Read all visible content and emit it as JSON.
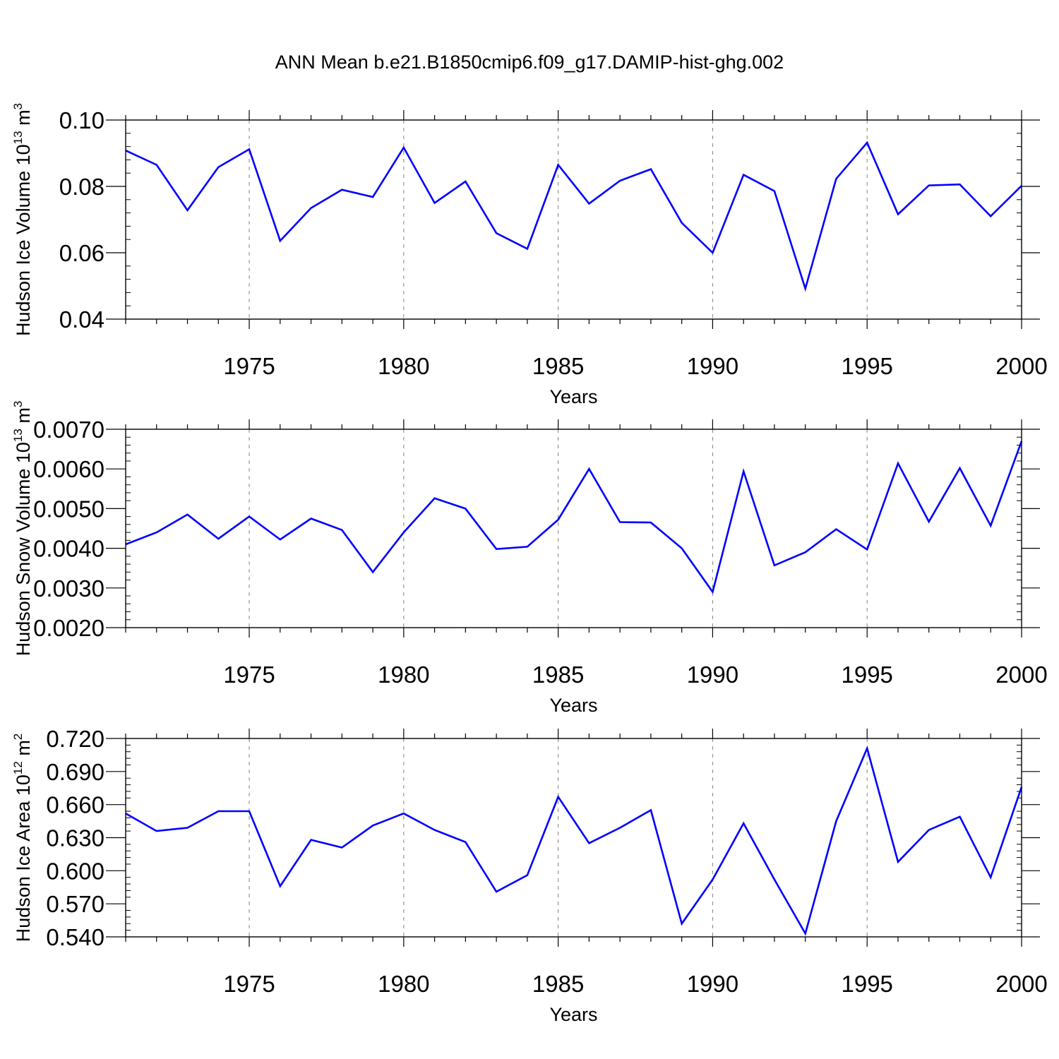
{
  "title": "ANN Mean b.e21.B1850cmip6.f09_g17.DAMIP-hist-ghg.002",
  "colors": {
    "line": "#0000ff",
    "axes": "#000000",
    "grid": "#808080"
  },
  "chart_data": [
    {
      "type": "line",
      "ylabel": "Hudson Ice Volume 10",
      "ylabel_exponent": "13",
      "ylabel_unit": " m",
      "ylabel_unit_exponent": "3",
      "xlabel": "Years",
      "xlim": [
        1971,
        2000
      ],
      "ylim": [
        0.04,
        0.1
      ],
      "x_ticks": [
        1975,
        1980,
        1985,
        1990,
        1995,
        2000
      ],
      "y_ticks": [
        "0.04",
        "0.06",
        "0.08",
        "0.10"
      ],
      "grid": "vertical dashed lines at major x ticks",
      "x": [
        1971,
        1972,
        1973,
        1974,
        1975,
        1976,
        1977,
        1978,
        1979,
        1980,
        1981,
        1982,
        1983,
        1984,
        1985,
        1986,
        1987,
        1988,
        1989,
        1990,
        1991,
        1992,
        1993,
        1994,
        1995,
        1996,
        1997,
        1998,
        1999,
        2000
      ],
      "series": [
        {
          "values": [
            0.0908,
            0.0865,
            0.0728,
            0.0858,
            0.0912,
            0.0636,
            0.0735,
            0.079,
            0.0768,
            0.0917,
            0.075,
            0.0815,
            0.0659,
            0.0612,
            0.0865,
            0.0748,
            0.0817,
            0.0852,
            0.069,
            0.06,
            0.0835,
            0.0786,
            0.0492,
            0.0823,
            0.0932,
            0.0716,
            0.0803,
            0.0806,
            0.071,
            0.0802
          ]
        }
      ]
    },
    {
      "type": "line",
      "ylabel": "Hudson Snow Volume 10",
      "ylabel_exponent": "13",
      "ylabel_unit": " m",
      "ylabel_unit_exponent": "3",
      "xlabel": "Years",
      "xlim": [
        1971,
        2000
      ],
      "ylim": [
        0.002,
        0.007
      ],
      "x_ticks": [
        1975,
        1980,
        1985,
        1990,
        1995,
        2000
      ],
      "y_ticks": [
        "0.0020",
        "0.0030",
        "0.0040",
        "0.0050",
        "0.0060",
        "0.0070"
      ],
      "grid": "vertical dashed lines at major x ticks",
      "x": [
        1971,
        1972,
        1973,
        1974,
        1975,
        1976,
        1977,
        1978,
        1979,
        1980,
        1981,
        1982,
        1983,
        1984,
        1985,
        1986,
        1987,
        1988,
        1989,
        1990,
        1991,
        1992,
        1993,
        1994,
        1995,
        1996,
        1997,
        1998,
        1999,
        2000
      ],
      "series": [
        {
          "values": [
            0.0041,
            0.0044,
            0.00485,
            0.00424,
            0.0048,
            0.00422,
            0.00475,
            0.00446,
            0.0034,
            0.0044,
            0.00526,
            0.005,
            0.00398,
            0.00404,
            0.00472,
            0.006,
            0.00466,
            0.00465,
            0.004,
            0.0029,
            0.00594,
            0.00357,
            0.0039,
            0.00448,
            0.00397,
            0.00614,
            0.00467,
            0.00602,
            0.00457,
            0.0067
          ]
        }
      ]
    },
    {
      "type": "line",
      "ylabel": "Hudson Ice Area 10",
      "ylabel_exponent": "12",
      "ylabel_unit": " m",
      "ylabel_unit_exponent": "2",
      "xlabel": "Years",
      "xlim": [
        1971,
        2000
      ],
      "ylim": [
        0.54,
        0.72
      ],
      "x_ticks": [
        1975,
        1980,
        1985,
        1990,
        1995,
        2000
      ],
      "y_ticks": [
        "0.540",
        "0.570",
        "0.600",
        "0.630",
        "0.660",
        "0.690",
        "0.720"
      ],
      "grid": "vertical dashed lines at major x ticks",
      "x": [
        1971,
        1972,
        1973,
        1974,
        1975,
        1976,
        1977,
        1978,
        1979,
        1980,
        1981,
        1982,
        1983,
        1984,
        1985,
        1986,
        1987,
        1988,
        1989,
        1990,
        1991,
        1992,
        1993,
        1994,
        1995,
        1996,
        1997,
        1998,
        1999,
        2000
      ],
      "series": [
        {
          "values": [
            0.652,
            0.636,
            0.639,
            0.654,
            0.654,
            0.586,
            0.628,
            0.621,
            0.641,
            0.652,
            0.637,
            0.626,
            0.581,
            0.596,
            0.667,
            0.625,
            0.639,
            0.655,
            0.552,
            0.592,
            0.643,
            0.592,
            0.543,
            0.645,
            0.711,
            0.608,
            0.637,
            0.649,
            0.594,
            0.676
          ]
        }
      ]
    }
  ]
}
